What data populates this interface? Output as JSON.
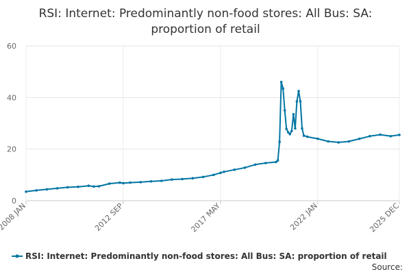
{
  "chart_data": {
    "type": "line",
    "title_line1": "RSI: Internet: Predominantly non-food stores: All Bus: SA:",
    "title_line2": "proportion of retail",
    "xlabel": "",
    "ylabel": "",
    "ylim": [
      0,
      60
    ],
    "yticks": [
      "0",
      "20",
      "40",
      "60"
    ],
    "xticks": [
      "2008 JAN",
      "2012 SEP",
      "2017 MAY",
      "2022 JAN",
      "2025 DEC"
    ],
    "grid": true,
    "legend_position": "bottom",
    "series_color": "#0075a3",
    "series": [
      {
        "name": "RSI: Internet: Predominantly non-food stores: All Bus: SA: proportion of retail",
        "points": [
          [
            "2008-01",
            3.5
          ],
          [
            "2008-07",
            4.0
          ],
          [
            "2009-01",
            4.4
          ],
          [
            "2009-07",
            4.8
          ],
          [
            "2010-01",
            5.2
          ],
          [
            "2010-07",
            5.4
          ],
          [
            "2011-01",
            5.8
          ],
          [
            "2011-04",
            5.5
          ],
          [
            "2011-07",
            5.6
          ],
          [
            "2012-01",
            6.6
          ],
          [
            "2012-07",
            7.0
          ],
          [
            "2012-09",
            6.8
          ],
          [
            "2013-01",
            7.0
          ],
          [
            "2013-07",
            7.2
          ],
          [
            "2014-01",
            7.5
          ],
          [
            "2014-07",
            7.7
          ],
          [
            "2015-01",
            8.2
          ],
          [
            "2015-07",
            8.4
          ],
          [
            "2016-01",
            8.7
          ],
          [
            "2016-07",
            9.2
          ],
          [
            "2017-01",
            10.0
          ],
          [
            "2017-05",
            10.8
          ],
          [
            "2017-07",
            11.2
          ],
          [
            "2018-01",
            12.0
          ],
          [
            "2018-07",
            12.8
          ],
          [
            "2019-01",
            14.0
          ],
          [
            "2019-07",
            14.6
          ],
          [
            "2020-01",
            15.0
          ],
          [
            "2020-02",
            15.6
          ],
          [
            "2020-03",
            22.8
          ],
          [
            "2020-04",
            46.0
          ],
          [
            "2020-05",
            43.5
          ],
          [
            "2020-06",
            35.0
          ],
          [
            "2020-07",
            27.8
          ],
          [
            "2020-08",
            26.5
          ],
          [
            "2020-09",
            25.8
          ],
          [
            "2020-10",
            27.0
          ],
          [
            "2020-11",
            33.5
          ],
          [
            "2020-12",
            28.0
          ],
          [
            "2021-01",
            38.5
          ],
          [
            "2021-02",
            42.5
          ],
          [
            "2021-03",
            38.5
          ],
          [
            "2021-04",
            28.0
          ],
          [
            "2021-05",
            25.2
          ],
          [
            "2021-07",
            24.8
          ],
          [
            "2022-01",
            24.0
          ],
          [
            "2022-07",
            23.0
          ],
          [
            "2023-01",
            22.6
          ],
          [
            "2023-07",
            23.0
          ],
          [
            "2024-01",
            24.0
          ],
          [
            "2024-07",
            25.0
          ],
          [
            "2025-01",
            25.6
          ],
          [
            "2025-07",
            25.0
          ],
          [
            "2025-12",
            25.5
          ]
        ]
      }
    ],
    "source_label": "Source:"
  }
}
